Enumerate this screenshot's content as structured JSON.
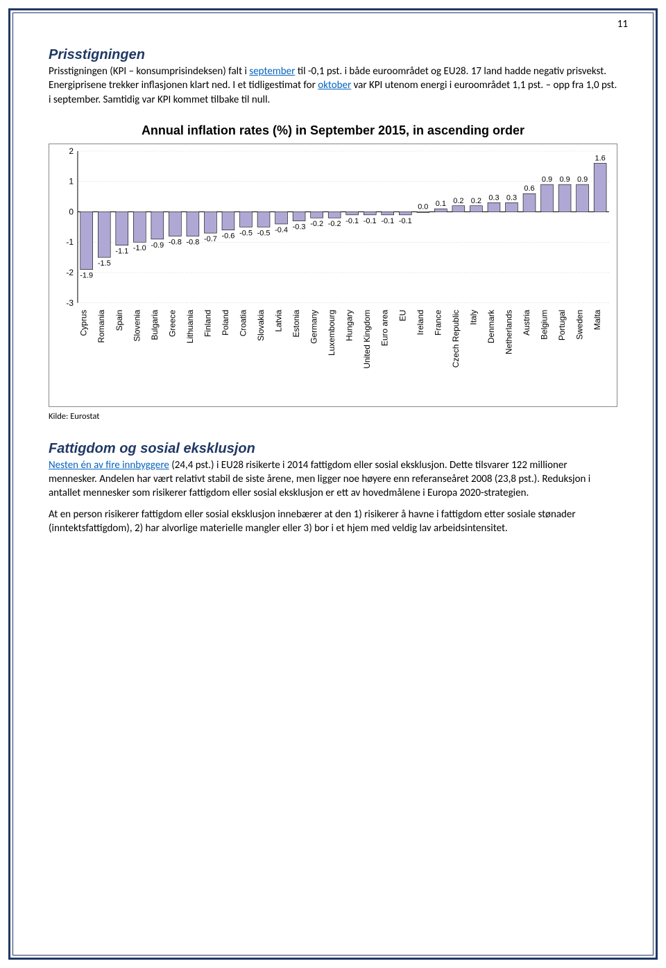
{
  "page_number": "11",
  "section1": {
    "title": "Prisstigningen",
    "para1_pre": "Prisstigningen (KPI – konsumprisindeksen) falt i ",
    "para1_link1": "september",
    "para1_mid": " til -0,1 pst. i både euroområdet og EU28. 17 land hadde negativ prisvekst. Energiprisene trekker inflasjonen klart ned. I et tidligestimat for ",
    "para1_link2": "oktober",
    "para1_post": " var KPI utenom energi i euroområdet 1,1 pst. – opp fra 1,0 pst. i september. Samtidig var KPI kommet tilbake til null."
  },
  "chart": {
    "type": "bar",
    "title": "Annual inflation rates (%) in September 2015, in ascending order",
    "categories": [
      "Cyprus",
      "Romania",
      "Spain",
      "Slovenia",
      "Bulgaria",
      "Greece",
      "Lithuania",
      "Finland",
      "Poland",
      "Croatia",
      "Slovakia",
      "Latvia",
      "Estonia",
      "Germany",
      "Luxembourg",
      "Hungary",
      "United Kingdom",
      "Euro area",
      "EU",
      "Ireland",
      "France",
      "Czech Republic",
      "Italy",
      "Denmark",
      "Netherlands",
      "Austria",
      "Belgium",
      "Portugal",
      "Sweden",
      "Malta"
    ],
    "values": [
      -1.9,
      -1.5,
      -1.1,
      -1.0,
      -0.9,
      -0.8,
      -0.8,
      -0.7,
      -0.6,
      -0.5,
      -0.5,
      -0.4,
      -0.3,
      -0.2,
      -0.2,
      -0.1,
      -0.1,
      -0.1,
      -0.1,
      0.0,
      0.1,
      0.2,
      0.2,
      0.3,
      0.3,
      0.6,
      0.9,
      0.9,
      0.9,
      1.6
    ],
    "bar_color": "#b0a8d4",
    "bar_stroke": "#000000",
    "background_color": "#ffffff",
    "grid_color": "#cccccc",
    "ylim": [
      -3,
      2
    ],
    "yticks": [
      -3,
      -2,
      -1,
      0,
      1,
      2
    ],
    "label_fontsize": 12,
    "value_fontsize": 11,
    "bar_width": 0.7
  },
  "source": "Kilde: Eurostat",
  "section2": {
    "title": "Fattigdom og sosial eksklusjon",
    "para1_link": "Nesten én av fire innbyggere",
    "para1_rest": " (24,4 pst.) i EU28 risikerte i 2014 fattigdom eller sosial eksklusjon. Dette tilsvarer 122 millioner mennesker. Andelen har vært relativt stabil de siste årene, men ligger noe høyere enn referanseåret 2008 (23,8 pst.). Reduksjon i antallet mennesker som risikerer fattigdom eller sosial eksklusjon er ett av hovedmålene i Europa 2020-strategien.",
    "para2": "At en person risikerer fattigdom eller sosial eksklusjon innebærer at den 1) risikerer å havne i fattigdom etter sosiale stønader (inntektsfattigdom), 2) har alvorlige materielle mangler eller 3) bor i et hjem med veldig lav arbeidsintensitet."
  }
}
